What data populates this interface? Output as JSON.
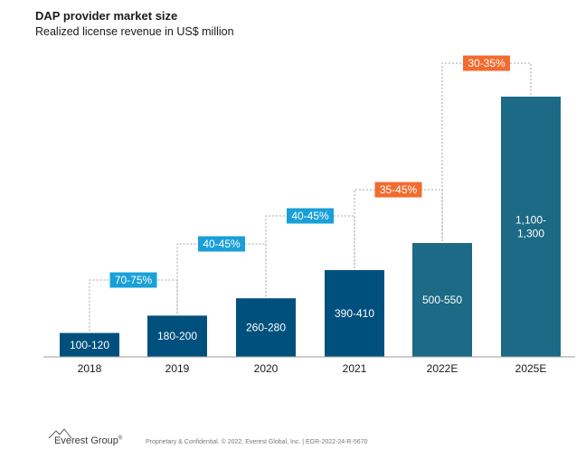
{
  "header": {
    "title": "DAP provider market size",
    "subtitle": "Realized license revenue in US$ million"
  },
  "chart_data": {
    "type": "bar",
    "title": "DAP provider market size",
    "subtitle": "Realized license revenue in US$ million",
    "categories": [
      "2018",
      "2019",
      "2020",
      "2021",
      "2022E",
      "2025E"
    ],
    "values": [
      110,
      190,
      270,
      400,
      525,
      1200
    ],
    "labels": [
      "100-120",
      "180-200",
      "260-280",
      "390-410",
      "500-550",
      "1,100-\n1,300"
    ],
    "bar_colors": [
      "#00507e",
      "#00507e",
      "#00507e",
      "#00507e",
      "#1c6a85",
      "#1c6a85"
    ],
    "growth_rates": [
      {
        "from": "2018",
        "to": "2019",
        "label": "70-75%",
        "color": "#1aa0d8"
      },
      {
        "from": "2019",
        "to": "2020",
        "label": "40-45%",
        "color": "#1aa0d8"
      },
      {
        "from": "2020",
        "to": "2021",
        "label": "40-45%",
        "color": "#1aa0d8"
      },
      {
        "from": "2021",
        "to": "2022E",
        "label": "35-45%",
        "color": "#f26b2f"
      },
      {
        "from": "2022E",
        "to": "2025E",
        "label": "30-35%",
        "color": "#f26b2f"
      }
    ],
    "grid": false,
    "legend": "none"
  },
  "footer": {
    "logo_text": "Everest Group",
    "logo_mark": "®",
    "note": "Proprietary & Confidential. © 2022, Everest Global, Inc. | EGR-2022-24-R-5670"
  }
}
